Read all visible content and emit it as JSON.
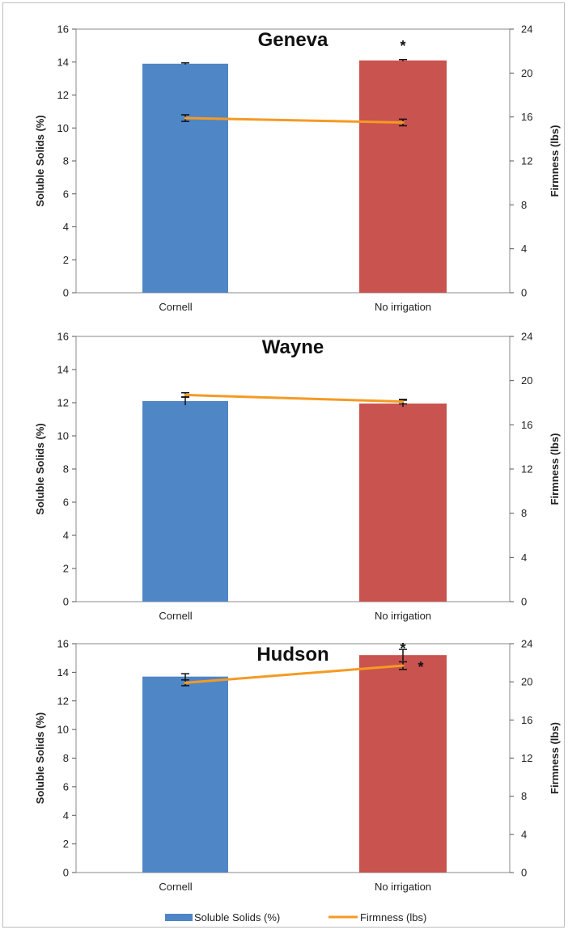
{
  "chart_data": [
    {
      "type": "bar",
      "title": "Geneva",
      "categories": [
        "Cornell",
        "No irrigation"
      ],
      "ylabel": "Soluble Solids (%)",
      "y2label": "Firmness (lbs)",
      "ylim": [
        0,
        16
      ],
      "y2lim": [
        0,
        24
      ],
      "yticks": [
        "0",
        "2",
        "4",
        "6",
        "8",
        "10",
        "12",
        "14",
        "16"
      ],
      "y2ticks": [
        "0",
        "4",
        "8",
        "12",
        "16",
        "20",
        "24"
      ],
      "series": [
        {
          "name": "Soluble Solids (%)",
          "type": "bar",
          "axis": "left",
          "values": [
            13.9,
            14.1
          ],
          "error": [
            0.05,
            0.05
          ],
          "color": "#4f86c6"
        },
        {
          "name": "Firmness (lbs)",
          "type": "line",
          "axis": "right",
          "values": [
            15.9,
            15.5
          ],
          "error": [
            0.3,
            0.3
          ],
          "color": "#f59a23"
        }
      ],
      "annotations": [
        {
          "text": "*",
          "category": "No irrigation",
          "series": "Soluble Solids (%)",
          "position": "above-bar"
        }
      ],
      "grid": false
    },
    {
      "type": "bar",
      "title": "Wayne",
      "categories": [
        "Cornell",
        "No irrigation"
      ],
      "ylabel": "Soluble Solids (%)",
      "y2label": "Firmness (lbs)",
      "ylim": [
        0,
        16
      ],
      "y2lim": [
        0,
        24
      ],
      "yticks": [
        "0",
        "2",
        "4",
        "6",
        "8",
        "10",
        "12",
        "14",
        "16"
      ],
      "y2ticks": [
        "0",
        "4",
        "8",
        "12",
        "16",
        "20",
        "24"
      ],
      "series": [
        {
          "name": "Soluble Solids (%)",
          "type": "bar",
          "axis": "left",
          "values": [
            12.1,
            11.95
          ],
          "error": [
            0.25,
            0.2
          ],
          "color": "#4f86c6"
        },
        {
          "name": "Firmness (lbs)",
          "type": "line",
          "axis": "right",
          "values": [
            18.7,
            18.1
          ],
          "error": [
            0.2,
            0.2
          ],
          "color": "#f59a23"
        }
      ],
      "annotations": [],
      "grid": false
    },
    {
      "type": "bar",
      "title": "Hudson",
      "categories": [
        "Cornell",
        "No irrigation"
      ],
      "ylabel": "Soluble Solids (%)",
      "y2label": "Firmness (lbs)",
      "ylim": [
        0,
        16
      ],
      "y2lim": [
        0,
        24
      ],
      "yticks": [
        "0",
        "2",
        "4",
        "6",
        "8",
        "10",
        "12",
        "14",
        "16"
      ],
      "y2ticks": [
        "0",
        "4",
        "8",
        "12",
        "16",
        "20",
        "24"
      ],
      "series": [
        {
          "name": "Soluble Solids (%)",
          "type": "bar",
          "axis": "left",
          "values": [
            13.7,
            15.2
          ],
          "error": [
            0.2,
            0.4
          ],
          "color": "#4f86c6"
        },
        {
          "name": "Firmness (lbs)",
          "type": "line",
          "axis": "right",
          "values": [
            19.9,
            21.7
          ],
          "error": [
            0.3,
            0.4
          ],
          "color": "#f59a23"
        }
      ],
      "annotations": [
        {
          "text": "*",
          "category": "No irrigation",
          "series": "Soluble Solids (%)",
          "position": "above-bar"
        },
        {
          "text": "*",
          "category": "No irrigation",
          "series": "Firmness (lbs)",
          "position": "right-of-point"
        }
      ],
      "grid": false
    }
  ],
  "legend": {
    "placement": "bottom",
    "items": [
      {
        "label": "Soluble Solids (%)",
        "marker": "bar",
        "color": "#4f86c6"
      },
      {
        "label": "Firmness (lbs)",
        "marker": "line",
        "color": "#f59a23"
      }
    ]
  },
  "colors": {
    "bar_fill": "#4f86c6",
    "bar_fill_2": "#c9534f",
    "line": "#f59a23",
    "axis": "#555555"
  }
}
